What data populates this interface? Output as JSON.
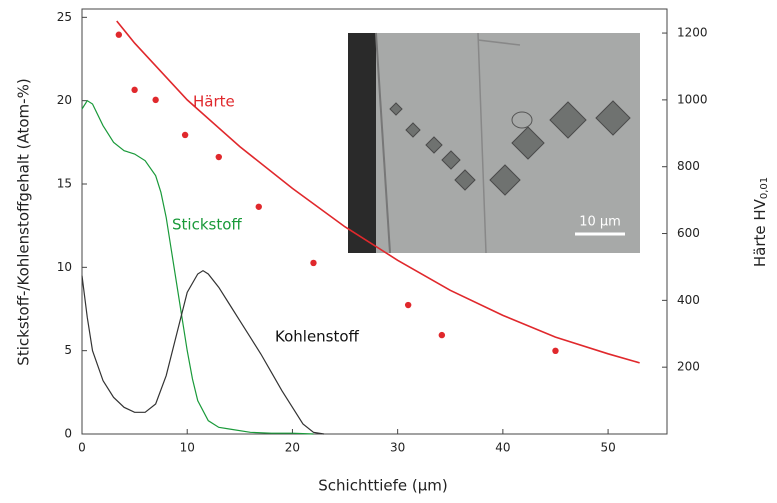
{
  "chart_data": {
    "type": "line",
    "xlabel": "Schichttiefe (µm)",
    "ylabel": "Stickstoff-/Kohlenstoffgehalt (Atom-%)",
    "y2label": "Härte HV",
    "y2label_sub": "0,01",
    "xlim": [
      0,
      55.6
    ],
    "ylim": [
      0,
      25.5
    ],
    "y2lim": [
      0,
      1272
    ],
    "xticks": [
      0,
      10,
      20,
      30,
      40,
      50
    ],
    "yticks": [
      0,
      5,
      10,
      15,
      20,
      25
    ],
    "y2ticks": [
      200,
      400,
      600,
      800,
      1000,
      1200
    ],
    "series": [
      {
        "name": "Stickstoff",
        "color": "#1a9a3a",
        "mode": "line",
        "x": [
          0,
          0.5,
          1,
          2,
          3,
          4,
          5,
          6,
          7,
          7.5,
          8,
          8.5,
          9,
          9.5,
          10,
          10.5,
          11,
          12,
          13,
          14,
          16,
          18,
          20,
          22
        ],
        "values": [
          19.5,
          20,
          19.8,
          18.5,
          17.5,
          17,
          16.8,
          16.4,
          15.5,
          14.5,
          13,
          11,
          9,
          7,
          5,
          3.3,
          2,
          0.8,
          0.4,
          0.3,
          0.1,
          0.05,
          0.05,
          0
        ]
      },
      {
        "name": "Kohlenstoff",
        "color": "#333333",
        "mode": "line",
        "x": [
          0,
          0.5,
          1,
          2,
          3,
          4,
          5,
          6,
          7,
          8,
          9,
          10,
          11,
          11.5,
          12,
          13,
          14,
          15,
          16,
          17,
          18,
          19,
          20,
          21,
          22,
          23
        ],
        "values": [
          9.5,
          7,
          5,
          3.2,
          2.2,
          1.6,
          1.3,
          1.3,
          1.8,
          3.5,
          6,
          8.5,
          9.6,
          9.8,
          9.6,
          8.8,
          7.8,
          6.8,
          5.8,
          4.8,
          3.7,
          2.6,
          1.6,
          0.6,
          0.1,
          0
        ]
      },
      {
        "name": "Härte",
        "color": "#e0282c",
        "mode": "line",
        "axis": "y2",
        "x": [
          3.3,
          5,
          10,
          15,
          20,
          25,
          30,
          35,
          40,
          45,
          50,
          53
        ],
        "values": [
          1236,
          1170,
          1000,
          860,
          735,
          620,
          520,
          430,
          355,
          290,
          240,
          213
        ]
      },
      {
        "color": "#e0282c",
        "mode": "markers",
        "axis": "y2",
        "x": [
          3.5,
          5,
          7,
          9.8,
          13,
          16.8,
          22,
          31,
          34.2,
          45
        ],
        "values": [
          1195,
          1030,
          1000,
          895,
          829,
          680,
          512,
          386,
          296,
          249
        ]
      }
    ],
    "inset": {
      "scale_label": "10 µm"
    }
  }
}
